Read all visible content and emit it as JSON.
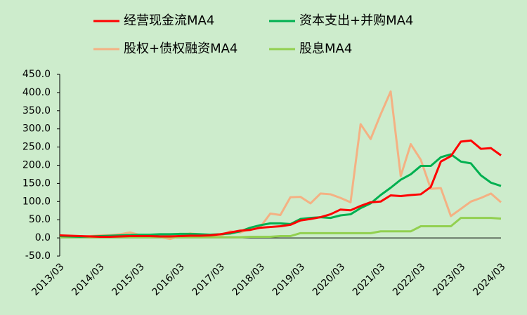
{
  "chart_data": {
    "type": "line",
    "categories": [
      "2013/03",
      null,
      null,
      null,
      "2014/03",
      null,
      null,
      null,
      "2015/03",
      null,
      null,
      null,
      "2016/03",
      null,
      null,
      null,
      "2017/03",
      null,
      null,
      null,
      "2018/03",
      null,
      null,
      null,
      "2019/03",
      null,
      null,
      null,
      "2020/03",
      null,
      null,
      null,
      "2021/03",
      null,
      null,
      null,
      "2022/03",
      null,
      null,
      null,
      "2023/03",
      null,
      null,
      null,
      "2024/03"
    ],
    "series": [
      {
        "name": "经营现金流MA4",
        "color": "#ff0000",
        "values": [
          7,
          6,
          5,
          4,
          3,
          3,
          4,
          5,
          5,
          5,
          4,
          4,
          5,
          6,
          6,
          7,
          10,
          15,
          20,
          22,
          28,
          30,
          32,
          36,
          48,
          52,
          57,
          65,
          78,
          76,
          88,
          98,
          100,
          117,
          115,
          118,
          120,
          140,
          210,
          225,
          265,
          268,
          245,
          247,
          227
        ]
      },
      {
        "name": "资本支出+并购MA4",
        "color": "#00b050",
        "values": [
          5,
          4,
          3,
          4,
          5,
          6,
          7,
          8,
          9,
          9,
          10,
          10,
          11,
          11,
          10,
          9,
          10,
          12,
          18,
          28,
          35,
          40,
          40,
          38,
          52,
          55,
          57,
          55,
          62,
          65,
          82,
          95,
          118,
          138,
          160,
          175,
          198,
          198,
          222,
          230,
          210,
          205,
          172,
          152,
          143
        ]
      },
      {
        "name": "股权+债权融资MA4",
        "color": "#f4b183",
        "values": [
          5,
          4,
          3,
          5,
          7,
          8,
          10,
          15,
          8,
          3,
          2,
          -3,
          5,
          12,
          10,
          5,
          5,
          18,
          15,
          25,
          30,
          67,
          63,
          112,
          113,
          95,
          122,
          120,
          110,
          98,
          313,
          272,
          340,
          403,
          170,
          258,
          215,
          135,
          137,
          60,
          80,
          100,
          110,
          122,
          98
        ]
      },
      {
        "name": "股息MA4",
        "color": "#92d050",
        "values": [
          2,
          2,
          2,
          2,
          2,
          2,
          2,
          2,
          2,
          2,
          2,
          2,
          2,
          2,
          2,
          2,
          2,
          2,
          2,
          3,
          3,
          3,
          5,
          5,
          13,
          13,
          13,
          13,
          13,
          13,
          13,
          13,
          18,
          18,
          18,
          18,
          32,
          32,
          32,
          32,
          55,
          55,
          55,
          55,
          53
        ]
      }
    ],
    "ylim": [
      -50,
      450
    ],
    "yticks": [
      {
        "value": -50,
        "label": "-50.0"
      },
      {
        "value": 0,
        "label": "0.0"
      },
      {
        "value": 50,
        "label": "50.0"
      },
      {
        "value": 100,
        "label": "100.0"
      },
      {
        "value": 150,
        "label": "150.0"
      },
      {
        "value": 200,
        "label": "200.0"
      },
      {
        "value": 250,
        "label": "250.0"
      },
      {
        "value": 300,
        "label": "300.0"
      },
      {
        "value": 350,
        "label": "350.0"
      },
      {
        "value": 400,
        "label": "400.0"
      },
      {
        "value": 450,
        "label": "450.0"
      }
    ]
  }
}
